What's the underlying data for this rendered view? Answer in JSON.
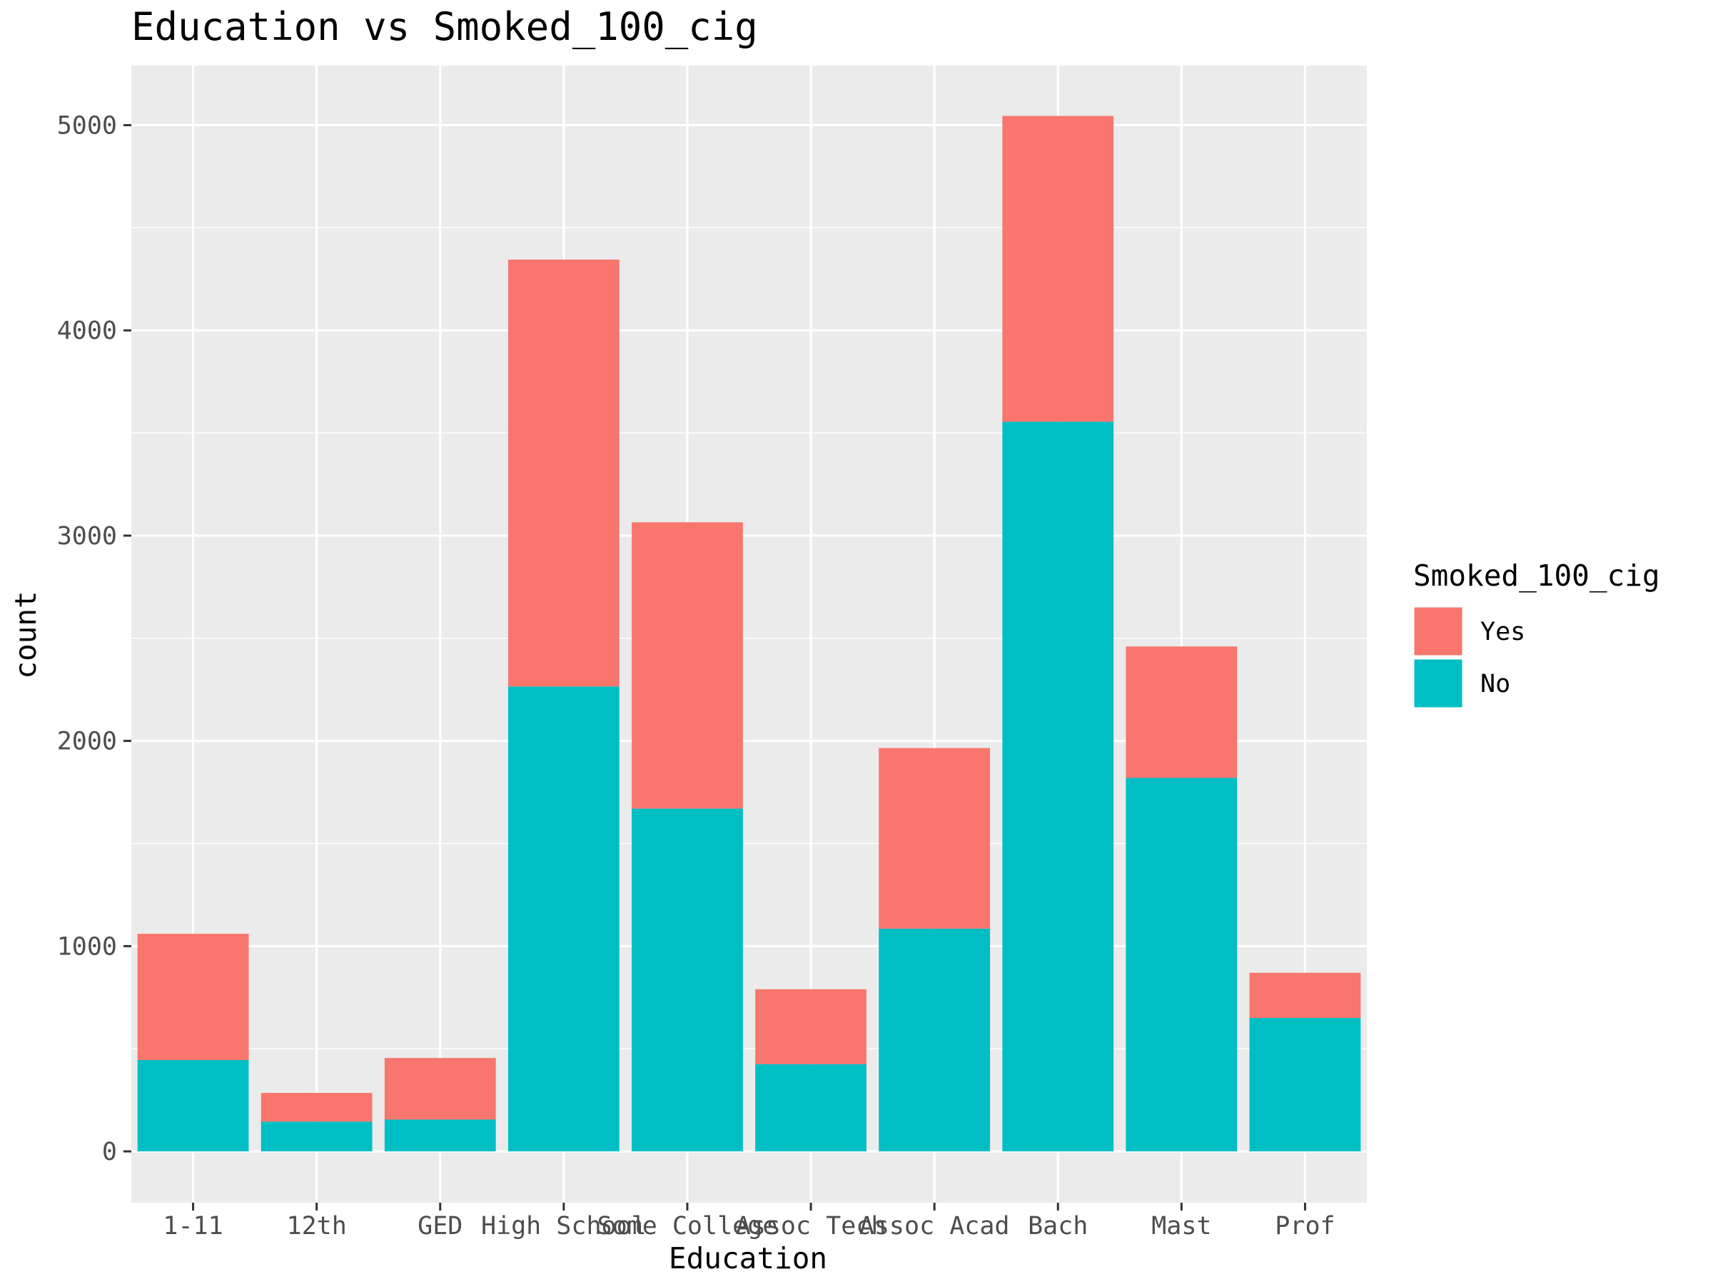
{
  "chart_data": {
    "type": "bar",
    "stacked": true,
    "title": "Education vs Smoked_100_cig",
    "xlabel": "Education",
    "ylabel": "count",
    "categories": [
      "1-11",
      "12th",
      "GED",
      "High School",
      "Some College",
      "Assoc Tech",
      "Assoc Acad",
      "Bach",
      "Mast",
      "Prof"
    ],
    "series": [
      {
        "name": "No",
        "color": "#00BFC4",
        "values": [
          445,
          145,
          155,
          2265,
          1670,
          425,
          1085,
          3555,
          1820,
          650
        ]
      },
      {
        "name": "Yes",
        "color": "#F8766D",
        "values": [
          615,
          140,
          300,
          2080,
          1395,
          365,
          880,
          1490,
          640,
          220
        ]
      }
    ],
    "ylim": [
      -250,
      5290
    ],
    "yticks": [
      0,
      1000,
      2000,
      3000,
      4000,
      5000
    ],
    "ytick_labels": [
      "0",
      "1000",
      "2000",
      "3000",
      "4000",
      "5000"
    ],
    "grid": true,
    "legend": {
      "title": "Smoked_100_cig",
      "position": "right",
      "items": [
        {
          "label": "Yes",
          "color": "#F8766D"
        },
        {
          "label": "No",
          "color": "#00BFC4"
        }
      ]
    },
    "panel_background": "#EBEBEB",
    "grid_color": "#FFFFFF"
  }
}
